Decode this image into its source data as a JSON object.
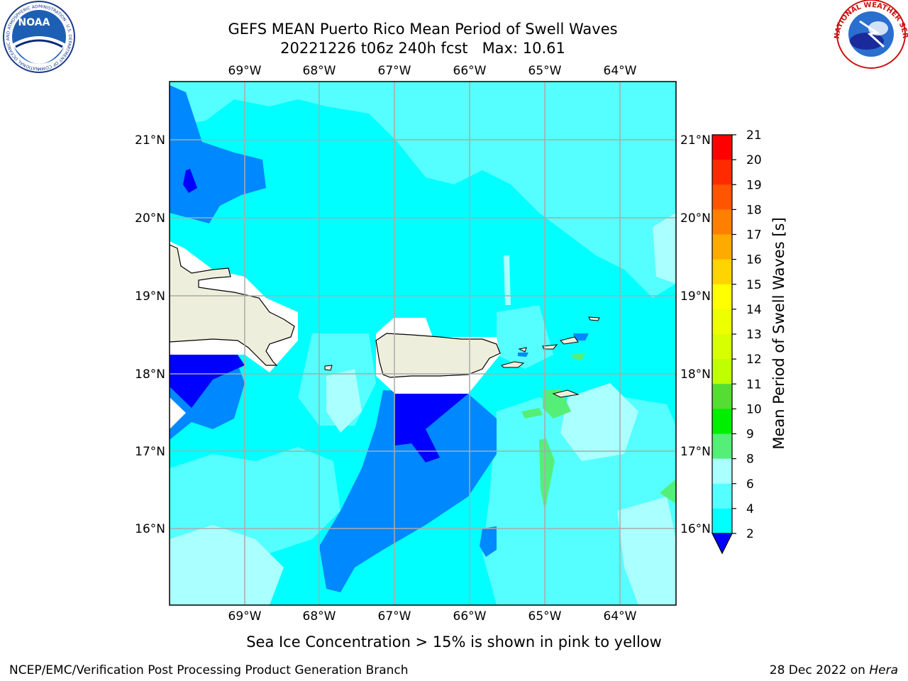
{
  "header": {
    "title_line1": "GEFS MEAN Puerto Rico Mean Period of Swell Waves",
    "title_line2": "20221226 t06z 240h fcst   Max: 10.61"
  },
  "map": {
    "lon_labels": [
      "69°W",
      "68°W",
      "67°W",
      "66°W",
      "65°W",
      "64°W"
    ],
    "lat_labels": [
      "21°N",
      "20°N",
      "19°N",
      "18°N",
      "17°N",
      "16°N"
    ],
    "lon_range": [
      -70,
      -63.3
    ],
    "lat_range": [
      15,
      21.8
    ],
    "grid": true
  },
  "colorbar": {
    "label": "Mean Period of Swell Waves [s]",
    "ticks": [
      "21",
      "20",
      "19",
      "18",
      "17",
      "16",
      "15",
      "14",
      "13",
      "12",
      "11",
      "10",
      "9",
      "8",
      "6",
      "4",
      "2"
    ],
    "colors": [
      "#ff0000",
      "#ff2a00",
      "#ff5500",
      "#ff8000",
      "#ffaa00",
      "#ffd400",
      "#ffff00",
      "#eeff00",
      "#d8ff00",
      "#c0ff00",
      "#55dd33",
      "#00ee00",
      "#55ee77",
      "#aaffff",
      "#55ffff",
      "#00ffff",
      "#0088ff",
      "#0000ff"
    ]
  },
  "legend_colors": {
    "c2_4": "#0088ff",
    "c_lt2": "#0000ff",
    "c4_6": "#00ffff",
    "c6_8": "#55ffff",
    "c8_9": "#aaffff",
    "c9_10": "#55ee77",
    "land": "#eeeedc"
  },
  "footer": {
    "note": "Sea Ice Concentration > 15% is shown in pink to yellow",
    "left": "NCEP/EMC/Verification Post Processing Product Generation Branch",
    "date": "28 Dec 2022 on ",
    "machine": "Hera"
  },
  "logos": {
    "left_text": "NOAA",
    "right_text": "NATIONAL WEATHER SERVICE",
    "left_ring_text": "NATIONAL OCEANIC AND ATMOSPHERIC ADMINISTRATION · U.S. DEPARTMENT OF COMMERCE"
  }
}
